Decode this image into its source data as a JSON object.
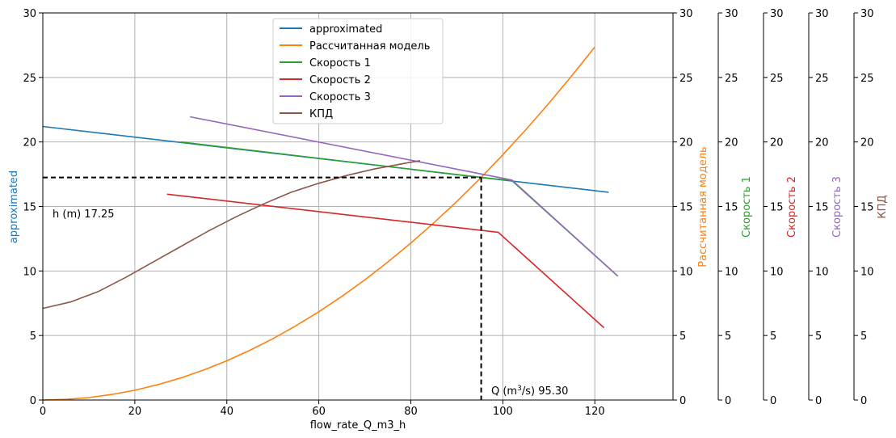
{
  "chart_data": {
    "type": "line",
    "xlabel": "flow_rate_Q_m3_h",
    "ylabel": "approximated",
    "xlim": [
      0,
      137
    ],
    "ylim": [
      0,
      30
    ],
    "x_ticks": [
      "0",
      "20",
      "40",
      "60",
      "80",
      "100",
      "120"
    ],
    "y_ticks": [
      "0",
      "5",
      "10",
      "15",
      "20",
      "25",
      "30"
    ],
    "grid": true,
    "legend_position": "top-center",
    "series": [
      {
        "name": "approximated",
        "color": "#1f77b4",
        "x": [
          0,
          123
        ],
        "y": [
          21.2,
          16.1
        ]
      },
      {
        "name": "Рассчитанная модель",
        "color": "#ff7f0e",
        "x": [
          0,
          5,
          10,
          15,
          20,
          25,
          30,
          35,
          40,
          45,
          50,
          55,
          60,
          65,
          70,
          75,
          80,
          85,
          90,
          95,
          100,
          105,
          110,
          115,
          120
        ],
        "y": [
          0,
          0.05,
          0.19,
          0.43,
          0.76,
          1.19,
          1.71,
          2.33,
          3.04,
          3.85,
          4.75,
          5.75,
          6.84,
          8.03,
          9.31,
          10.69,
          12.16,
          13.73,
          15.39,
          17.15,
          19.0,
          20.95,
          22.99,
          25.13,
          27.36
        ]
      },
      {
        "name": "Скорость 1",
        "color": "#2ca02c",
        "x": [
          30,
          95.3,
          102,
          125
        ],
        "y": [
          20.0,
          17.25,
          17.0,
          9.6
        ]
      },
      {
        "name": "Скорость 2",
        "color": "#d62728",
        "x": [
          27,
          99,
          122
        ],
        "y": [
          15.95,
          13.0,
          5.6
        ]
      },
      {
        "name": "Скорость 3",
        "color": "#9467bd",
        "x": [
          32,
          102,
          125
        ],
        "y": [
          21.95,
          17.05,
          9.6
        ]
      },
      {
        "name": "КПД",
        "color": "#8c564b",
        "x": [
          0,
          6,
          12,
          18,
          24,
          30,
          36,
          42,
          48,
          54,
          60,
          66,
          72,
          78,
          82
        ],
        "y": [
          7.1,
          7.6,
          8.4,
          9.5,
          10.7,
          11.9,
          13.1,
          14.2,
          15.2,
          16.1,
          16.8,
          17.4,
          17.9,
          18.3,
          18.55
        ]
      }
    ],
    "operating_point": {
      "q": 95.3,
      "h": 17.25
    },
    "annotations": {
      "h_label": "h (m) 17.25",
      "q_prefix": "Q (m",
      "q_sup": "3",
      "q_suffix": "/s) 95.30"
    },
    "secondary_axes": [
      {
        "label": "Рассчитанная модель",
        "color": "#ff7f0e",
        "ylim": [
          0,
          30
        ]
      },
      {
        "label": "Скорость 1",
        "color": "#2ca02c",
        "ylim": [
          0,
          30
        ]
      },
      {
        "label": "Скорость 2",
        "color": "#d62728",
        "ylim": [
          0,
          30
        ]
      },
      {
        "label": "Скорость 3",
        "color": "#9467bd",
        "ylim": [
          0,
          30
        ]
      },
      {
        "label": "КПД",
        "color": "#8c564b",
        "ylim": [
          0,
          30
        ]
      }
    ]
  }
}
